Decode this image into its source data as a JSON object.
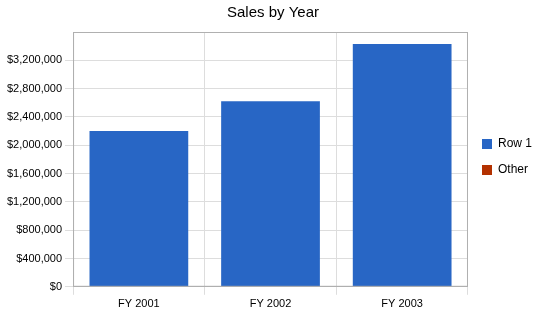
{
  "chart_data": {
    "type": "bar",
    "title": "Sales by Year",
    "categories": [
      "FY 2001",
      "FY 2002",
      "FY 2003"
    ],
    "series": [
      {
        "name": "Row 1",
        "color": "#2866c5",
        "values": [
          2200000,
          2620000,
          3430000
        ]
      },
      {
        "name": "Other",
        "color": "#b33100",
        "values": [
          0,
          0,
          0
        ]
      }
    ],
    "stacked": true,
    "legend": "right",
    "grid": true,
    "ylim": [
      0,
      3600000
    ],
    "yticks": [
      {
        "value": 0,
        "label": "$0"
      },
      {
        "value": 400000,
        "label": "$400,000"
      },
      {
        "value": 800000,
        "label": "$800,000"
      },
      {
        "value": 1200000,
        "label": "$1,200,000"
      },
      {
        "value": 1600000,
        "label": "$1,600,000"
      },
      {
        "value": 2000000,
        "label": "$2,000,000"
      },
      {
        "value": 2400000,
        "label": "$2,400,000"
      },
      {
        "value": 2800000,
        "label": "$2,800,000"
      },
      {
        "value": 3200000,
        "label": "$3,200,000"
      }
    ]
  }
}
